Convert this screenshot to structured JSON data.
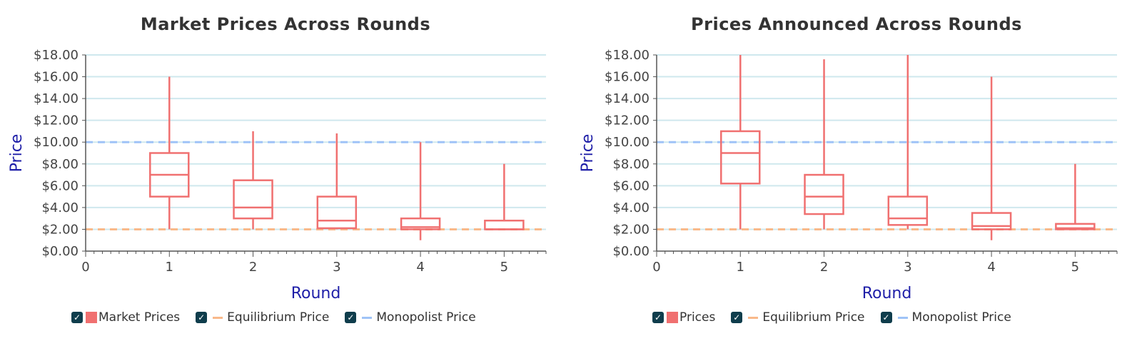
{
  "colors": {
    "box": "#f07070",
    "equilibrium": "#f9b98a",
    "monopolist": "#9fc3f7",
    "grid": "#cfe8ee",
    "axis": "#555555",
    "checkbox": "#0f3d4c"
  },
  "charts": [
    {
      "title": "Market Prices Across Rounds",
      "legend": [
        {
          "label": "Market Prices",
          "swatch": "box"
        },
        {
          "label": "Equilibrium Price",
          "swatch": "equilibrium"
        },
        {
          "label": "Monopolist Price",
          "swatch": "monopolist"
        }
      ]
    },
    {
      "title": "Prices Announced Across Rounds",
      "legend": [
        {
          "label": "Prices",
          "swatch": "box"
        },
        {
          "label": "Equilibrium Price",
          "swatch": "equilibrium"
        },
        {
          "label": "Monopolist Price",
          "swatch": "monopolist"
        }
      ]
    }
  ],
  "chart_data": [
    {
      "type": "box",
      "title": "Market Prices Across Rounds",
      "xlabel": "Round",
      "ylabel": "Price",
      "xlim": [
        0,
        5.5
      ],
      "ylim": [
        0,
        18
      ],
      "x_ticks": [
        0,
        1,
        2,
        3,
        4,
        5
      ],
      "y_ticks": [
        "$0.00",
        "$2.00",
        "$4.00",
        "$6.00",
        "$8.00",
        "$10.00",
        "$12.00",
        "$14.00",
        "$16.00",
        "$18.00"
      ],
      "grid": true,
      "legend_position": "bottom",
      "series": [
        {
          "name": "Market Prices",
          "boxes": [
            {
              "x": 1,
              "min": 2,
              "q1": 5,
              "median": 7,
              "q3": 9,
              "max": 16
            },
            {
              "x": 2,
              "min": 2,
              "q1": 3,
              "median": 4,
              "q3": 6.5,
              "max": 11
            },
            {
              "x": 3,
              "min": 2,
              "q1": 2.1,
              "median": 2.8,
              "q3": 5,
              "max": 10.8
            },
            {
              "x": 4,
              "min": 1,
              "q1": 2,
              "median": 2.2,
              "q3": 3,
              "max": 10
            },
            {
              "x": 5,
              "min": 2,
              "q1": 2,
              "median": 2,
              "q3": 2.8,
              "max": 8
            }
          ]
        }
      ],
      "reference_lines": [
        {
          "name": "Equilibrium Price",
          "y": 2
        },
        {
          "name": "Monopolist Price",
          "y": 10
        }
      ]
    },
    {
      "type": "box",
      "title": "Prices Announced Across Rounds",
      "xlabel": "Round",
      "ylabel": "Price",
      "xlim": [
        0,
        5.5
      ],
      "ylim": [
        0,
        18
      ],
      "x_ticks": [
        0,
        1,
        2,
        3,
        4,
        5
      ],
      "y_ticks": [
        "$0.00",
        "$2.00",
        "$4.00",
        "$6.00",
        "$8.00",
        "$10.00",
        "$12.00",
        "$14.00",
        "$16.00",
        "$18.00"
      ],
      "grid": true,
      "legend_position": "bottom",
      "series": [
        {
          "name": "Prices",
          "boxes": [
            {
              "x": 1,
              "min": 2,
              "q1": 6.2,
              "median": 9,
              "q3": 11,
              "max": 18
            },
            {
              "x": 2,
              "min": 2,
              "q1": 3.4,
              "median": 5,
              "q3": 7,
              "max": 17.6
            },
            {
              "x": 3,
              "min": 2,
              "q1": 2.4,
              "median": 3,
              "q3": 5,
              "max": 18
            },
            {
              "x": 4,
              "min": 1,
              "q1": 2,
              "median": 2.3,
              "q3": 3.5,
              "max": 16
            },
            {
              "x": 5,
              "min": 2,
              "q1": 2,
              "median": 2.1,
              "q3": 2.5,
              "max": 8
            }
          ]
        }
      ],
      "reference_lines": [
        {
          "name": "Equilibrium Price",
          "y": 2
        },
        {
          "name": "Monopolist Price",
          "y": 10
        }
      ]
    }
  ]
}
